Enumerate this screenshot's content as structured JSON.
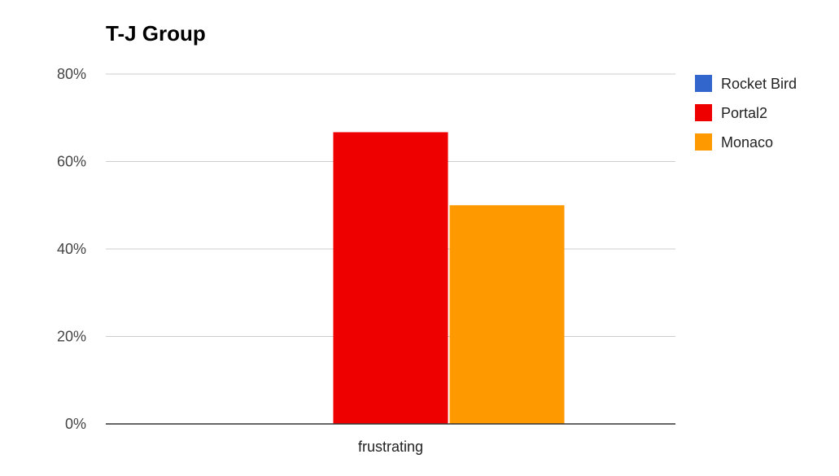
{
  "chart_data": {
    "type": "bar",
    "title": "T-J Group",
    "xlabel": "",
    "ylabel": "",
    "categories": [
      "frustrating"
    ],
    "series": [
      {
        "name": "Rocket Bird",
        "values": [
          0
        ],
        "color": "#3366cc"
      },
      {
        "name": "Portal2",
        "values": [
          0.667
        ],
        "color": "#ee0000"
      },
      {
        "name": "Monaco",
        "values": [
          0.5
        ],
        "color": "#ff9900"
      }
    ],
    "ylim": [
      0,
      0.8
    ],
    "yticks": [
      0,
      0.2,
      0.4,
      0.6,
      0.8
    ],
    "ytick_labels": [
      "0%",
      "20%",
      "40%",
      "60%",
      "80%"
    ],
    "grid": true,
    "legend": "right"
  }
}
